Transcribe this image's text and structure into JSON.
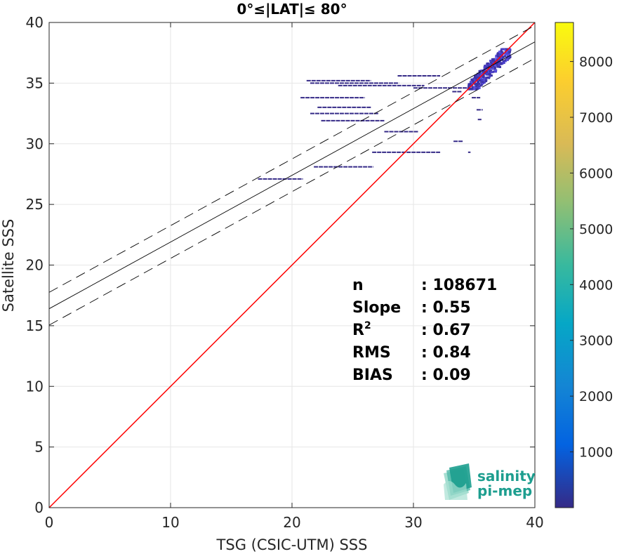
{
  "chart_data": {
    "type": "scatter",
    "title": "0°≤|LAT|≤ 80°",
    "xlabel": "TSG (CSIC-UTM) SSS",
    "ylabel": "Satellite SSS",
    "xlim": [
      0,
      40
    ],
    "ylim": [
      0,
      40
    ],
    "xticks": [
      "0",
      "10",
      "20",
      "30",
      "40"
    ],
    "yticks": [
      "0",
      "5",
      "10",
      "15",
      "20",
      "25",
      "30",
      "35",
      "40"
    ],
    "grid": true,
    "reference_line": {
      "x": [
        0,
        40
      ],
      "y": [
        0,
        40
      ],
      "color": "#ff0000"
    },
    "regression": {
      "intercept": 16.4,
      "slope": 0.55,
      "band_offset": 1.35
    },
    "colorbar": {
      "min": 0,
      "max": 8700,
      "ticks": [
        "1000",
        "2000",
        "3000",
        "4000",
        "5000",
        "6000",
        "7000",
        "8000"
      ],
      "colormap": "parula"
    },
    "stats": [
      {
        "label": "n",
        "value": ": 108671"
      },
      {
        "label": "Slope",
        "value": ": 0.55"
      },
      {
        "label": "R",
        "sup": "2",
        "value": ": 0.67"
      },
      {
        "label": "RMS",
        "value": ": 0.84"
      },
      {
        "label": "BIAS",
        "value": ": 0.09"
      }
    ],
    "density_segments": [
      {
        "x0": 21.2,
        "x1": 26.5,
        "y": 35.2
      },
      {
        "x0": 21.5,
        "x1": 28.8,
        "y": 35.0
      },
      {
        "x0": 23.8,
        "x1": 30.9,
        "y": 34.8
      },
      {
        "x0": 28.7,
        "x1": 32.2,
        "y": 35.6
      },
      {
        "x0": 30.0,
        "x1": 34.4,
        "y": 34.6
      },
      {
        "x0": 20.7,
        "x1": 26.0,
        "y": 33.8
      },
      {
        "x0": 22.1,
        "x1": 26.5,
        "y": 33.0
      },
      {
        "x0": 21.5,
        "x1": 27.1,
        "y": 32.5
      },
      {
        "x0": 22.4,
        "x1": 27.6,
        "y": 31.9
      },
      {
        "x0": 27.6,
        "x1": 30.4,
        "y": 31.0
      },
      {
        "x0": 26.6,
        "x1": 32.2,
        "y": 29.3
      },
      {
        "x0": 21.8,
        "x1": 26.7,
        "y": 28.1
      },
      {
        "x0": 17.2,
        "x1": 20.9,
        "y": 27.1
      },
      {
        "x0": 33.3,
        "x1": 34.1,
        "y": 30.2
      },
      {
        "x0": 34.5,
        "x1": 34.7,
        "y": 29.3
      },
      {
        "x0": 33.2,
        "x1": 34.0,
        "y": 34.3
      },
      {
        "x0": 34.8,
        "x1": 35.5,
        "y": 33.8
      },
      {
        "x0": 35.2,
        "x1": 35.7,
        "y": 32.8
      },
      {
        "x0": 35.3,
        "x1": 35.6,
        "y": 32.0
      }
    ],
    "density_cluster": {
      "x0": 34.5,
      "x1": 38.0,
      "y0": 34.5,
      "y1": 37.8
    }
  },
  "logo": {
    "line1": "salinity",
    "line2": "pi-mep"
  }
}
